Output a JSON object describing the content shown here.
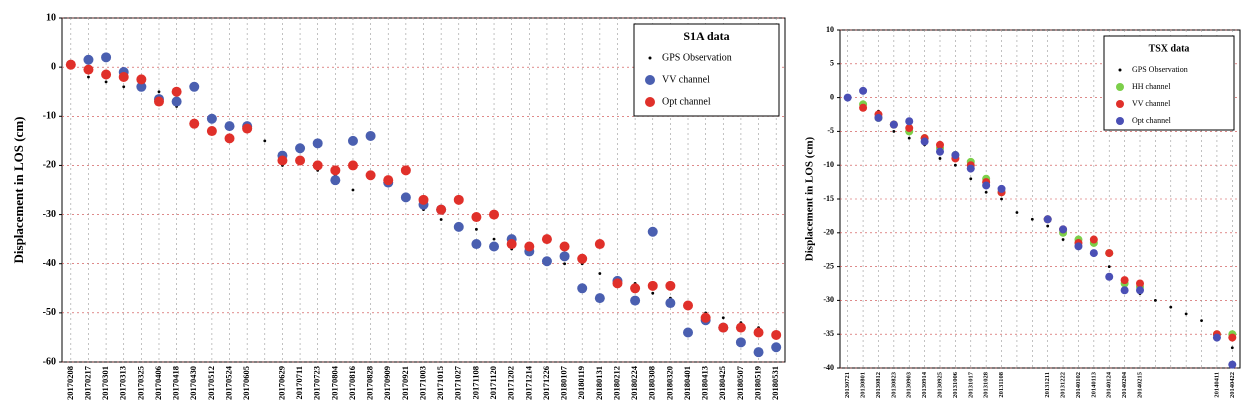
{
  "chart_data": [
    {
      "type": "scatter",
      "title": "S1A data",
      "ylabel": "Displacement in LOS (cm)",
      "categories": [
        "20170208",
        "20170217",
        "20170301",
        "20170313",
        "20170325",
        "20170406",
        "20170418",
        "20170430",
        "20170512",
        "20170524",
        "20170605",
        null,
        "20170629",
        "20170711",
        "20170723",
        "20170804",
        "20170816",
        "20170828",
        "20170909",
        "20170921",
        "20171003",
        "20171015",
        "20171027",
        "20171108",
        "20171120",
        "20171202",
        "20171214",
        "20171226",
        "20180107",
        "20180119",
        "20180131",
        "20180212",
        "20180224",
        "20180308",
        "20180320",
        "20180401",
        "20180413",
        "20180425",
        "20180507",
        "20180519",
        "20180531"
      ],
      "series": [
        {
          "name": "GPS Observation",
          "color": "#000000",
          "values": [
            1,
            -2,
            -3,
            -4,
            -3,
            -5,
            -8,
            -12,
            -13,
            -14,
            -12,
            -15,
            -20,
            -19,
            -21,
            -22,
            -25,
            -22,
            -24,
            -27,
            -29,
            -31,
            -32,
            -33,
            -35,
            -37,
            -38,
            -39,
            -40,
            -40,
            -42,
            -43,
            -44,
            -46,
            -47,
            -48,
            -50,
            -51,
            -52,
            -53,
            -55
          ]
        },
        {
          "name": "VV channel",
          "color": "#4a5fb0",
          "values": [
            null,
            1.5,
            2,
            -1,
            -4,
            -6.5,
            -7,
            -4,
            -10.5,
            -12,
            -12,
            null,
            -18,
            -16.5,
            -15.5,
            -23,
            -15,
            -14,
            -23.5,
            -26.5,
            -28,
            -29,
            -32.5,
            -36,
            -36.5,
            -35,
            -37.5,
            -39.5,
            -38.5,
            -45,
            -47,
            -43.5,
            -47.5,
            -33.5,
            -48,
            -54,
            -51.5,
            -53,
            -56,
            -58,
            -57
          ]
        },
        {
          "name": "Opt channel",
          "color": "#e0302a",
          "values": [
            0.5,
            -0.5,
            -1.5,
            -2,
            -2.5,
            -7,
            -5,
            -11.5,
            -13,
            -14.5,
            -12.5,
            null,
            -19,
            -19,
            -20,
            -21,
            -20,
            -22,
            -23,
            -21,
            -27,
            -29,
            -27,
            -30.5,
            -30,
            -36,
            -36.5,
            -35,
            -36.5,
            -39,
            -36,
            -44,
            -45,
            -44.5,
            -44.5,
            -48.5,
            -51,
            -53,
            -53,
            -54,
            -54.5
          ]
        }
      ],
      "ylim": [
        -60,
        10
      ],
      "yticks": [
        -60,
        -50,
        -40,
        -30,
        -20,
        -10,
        0,
        10
      ],
      "grid": true,
      "legend": "upper right"
    },
    {
      "type": "scatter",
      "title": "TSX data",
      "ylabel": "Displacement in LOS (cm)",
      "categories": [
        "20130721",
        "20130801",
        "20130812",
        "20130823",
        "20130903",
        "20130914",
        "20130925",
        "20131006",
        "20131017",
        "20131028",
        "20131108",
        null,
        null,
        "20131211",
        "20131222",
        "20140102",
        "20140113",
        "20140124",
        "20140204",
        "20140215",
        null,
        null,
        null,
        null,
        "20140411",
        "20140422"
      ],
      "series": [
        {
          "name": "GPS Observation",
          "color": "#000000",
          "values": [
            0,
            1,
            -2,
            -5,
            -6,
            -7,
            -9,
            -10,
            -12,
            -14,
            -15,
            -17,
            -18,
            -19,
            -21,
            -22,
            -23,
            -25,
            -28,
            -29,
            -30,
            -31,
            -32,
            -33,
            -35,
            -37
          ]
        },
        {
          "name": "HH channel",
          "color": "#7ccf4a",
          "values": [
            null,
            -1,
            -3,
            -4,
            -5,
            -6,
            -7.5,
            -8.5,
            -9.5,
            -12,
            -14,
            null,
            null,
            -18,
            -20,
            -21,
            -21.5,
            -23,
            -27.5,
            -28,
            null,
            null,
            null,
            null,
            -35,
            -35
          ]
        },
        {
          "name": "VV channel",
          "color": "#e0302a",
          "values": [
            null,
            -1.5,
            -2.5,
            -4,
            -4.5,
            -6,
            -7,
            -9,
            -10,
            -12.5,
            -14,
            null,
            null,
            -18,
            -19.5,
            -21.5,
            -21,
            -23,
            -27,
            -27.5,
            null,
            null,
            null,
            null,
            -35,
            -35.5
          ]
        },
        {
          "name": "Opt channel",
          "color": "#4a4fb5",
          "values": [
            0,
            1,
            -3,
            -4,
            -3.5,
            -6.5,
            -8,
            -8.5,
            -10.5,
            -13,
            -13.5,
            null,
            null,
            -18,
            -19.5,
            -22,
            -23,
            -26.5,
            -28.5,
            -28.5,
            null,
            null,
            null,
            null,
            -35.5,
            -39.5
          ]
        }
      ],
      "ylim": [
        -40,
        10
      ],
      "yticks": [
        -40,
        -35,
        -30,
        -25,
        -20,
        -15,
        -10,
        -5,
        0,
        5,
        10
      ],
      "grid": true,
      "legend": "upper right"
    }
  ]
}
